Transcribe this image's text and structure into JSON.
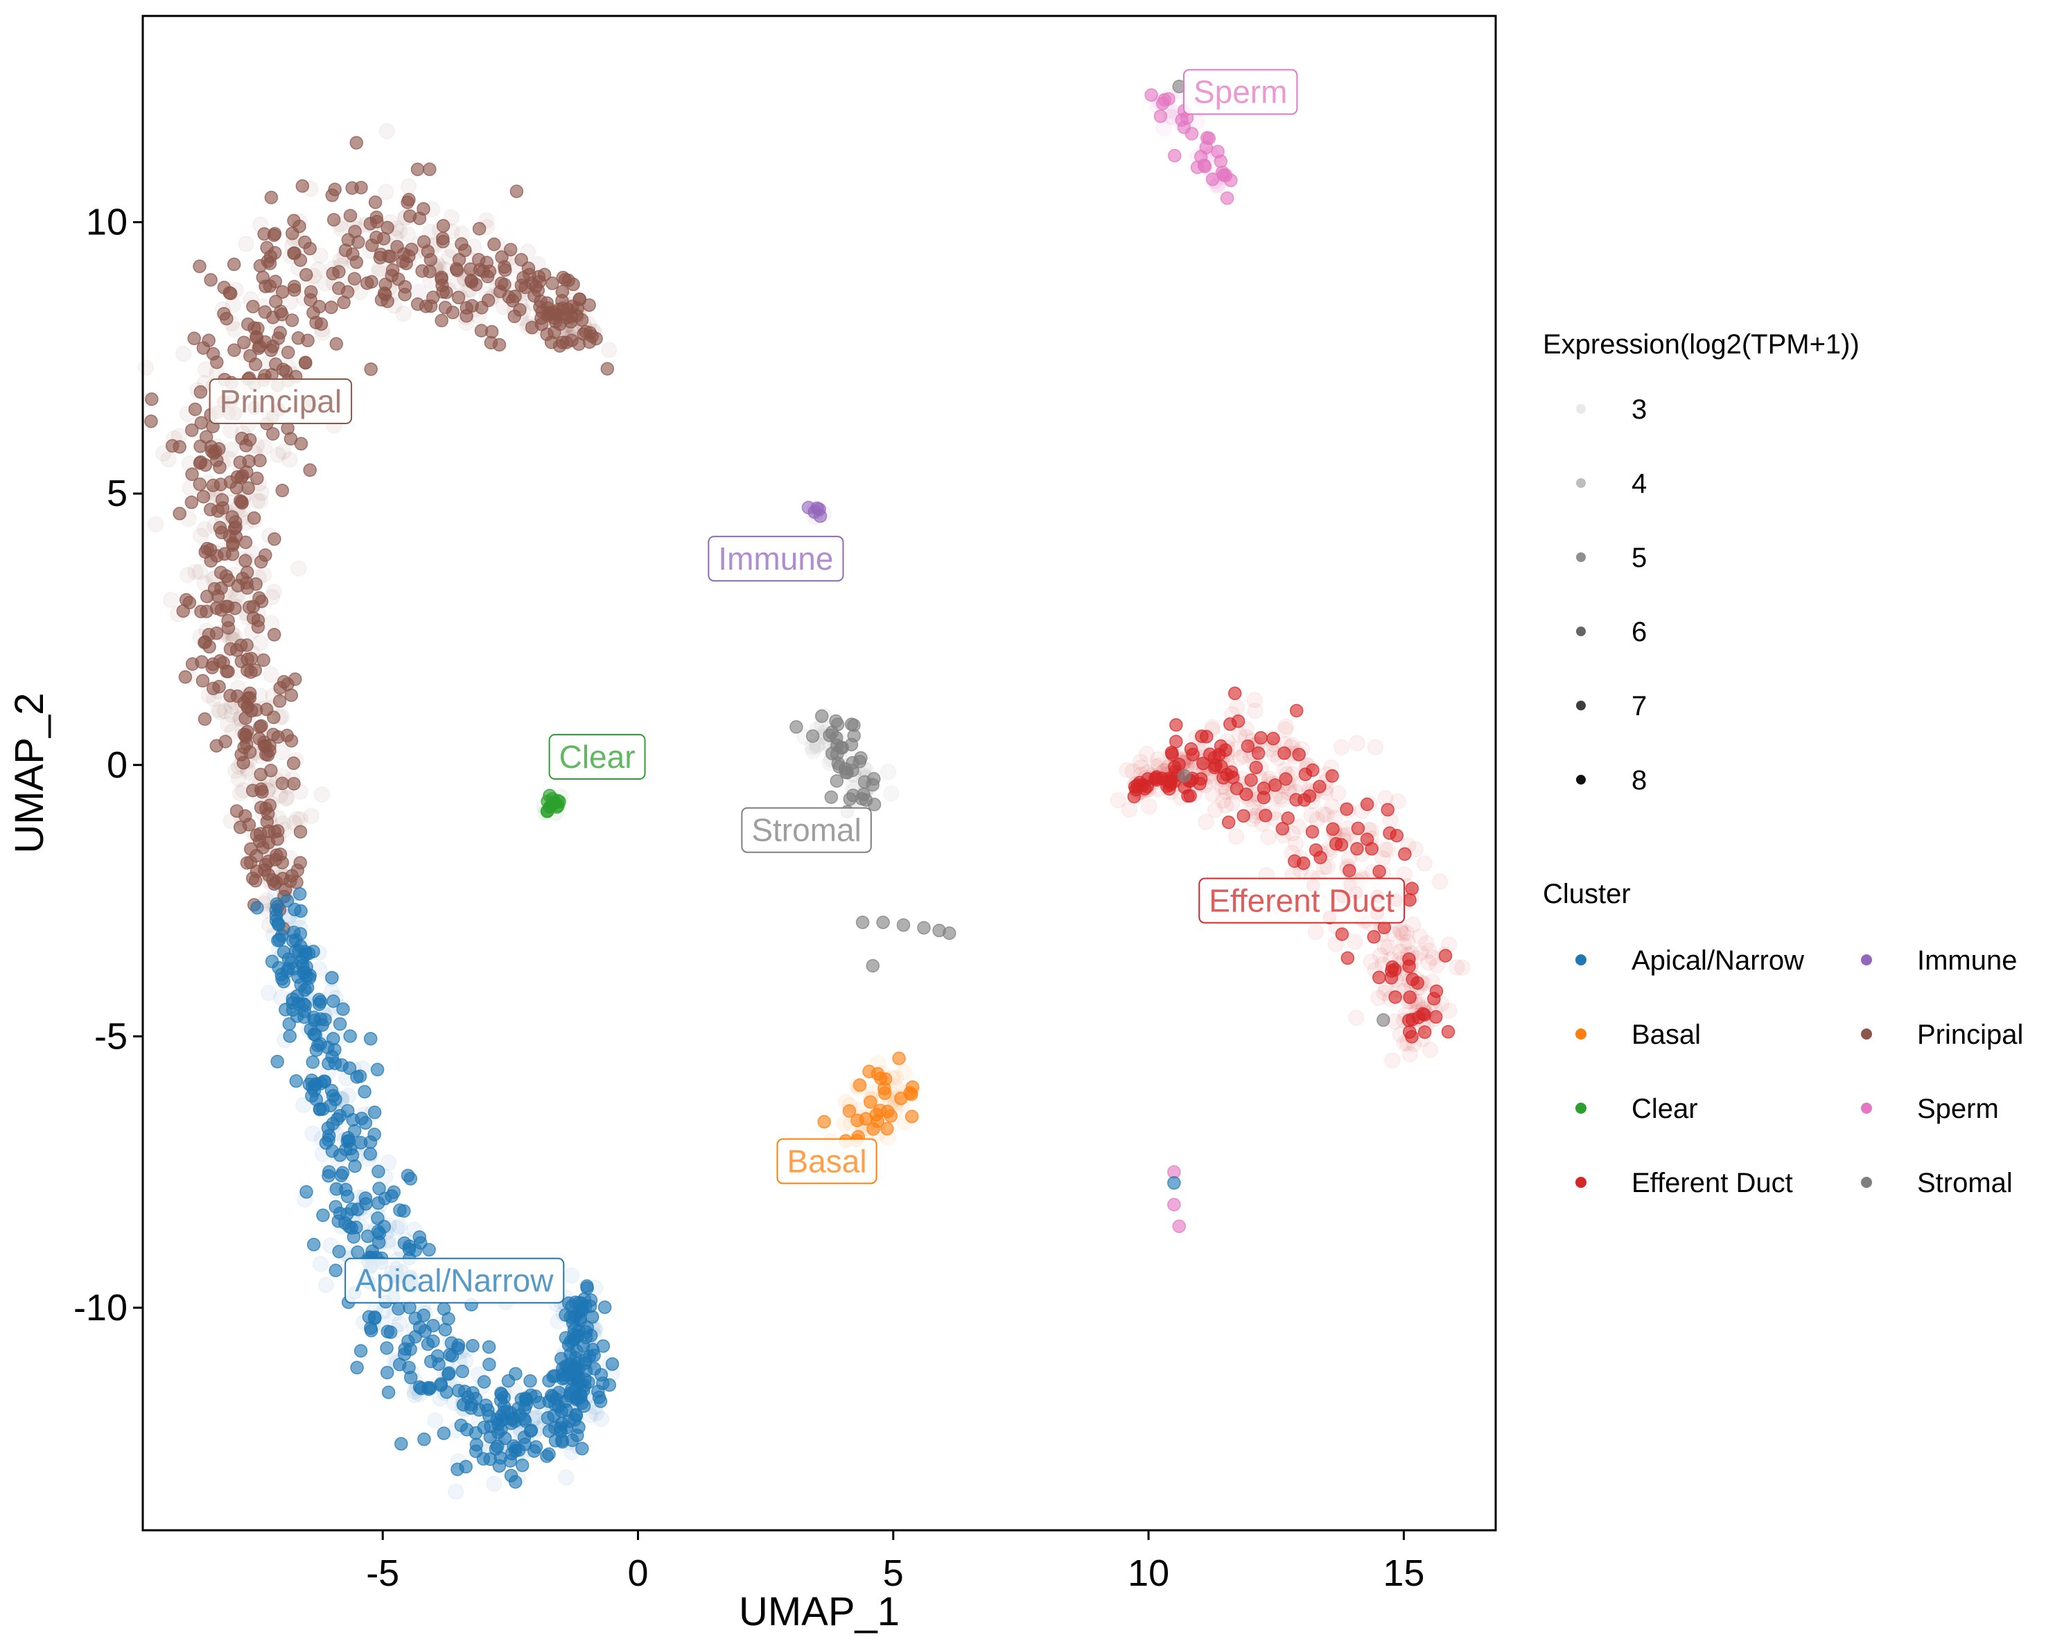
{
  "chart_data": {
    "type": "scatter",
    "xlabel": "UMAP_1",
    "ylabel": "UMAP_2",
    "xlim": [
      -9.7,
      16.8
    ],
    "ylim": [
      -14.1,
      13.8
    ],
    "x_ticks": [
      -5,
      0,
      5,
      10,
      15
    ],
    "y_ticks": [
      -10,
      -5,
      0,
      5,
      10
    ],
    "x_tick_labels": [
      "-5",
      "0",
      "5",
      "10",
      "15"
    ],
    "y_tick_labels": [
      "-10",
      "-5",
      "0",
      "5",
      "10"
    ],
    "grid": false,
    "legend_placement": "right",
    "size_legend": {
      "title": "Expression(log2(TPM+1))",
      "levels": [
        {
          "label": "3",
          "value": 3,
          "color": "#e9e9e9"
        },
        {
          "label": "4",
          "value": 4,
          "color": "#bdbdbd"
        },
        {
          "label": "5",
          "value": 5,
          "color": "#8f8f8f"
        },
        {
          "label": "6",
          "value": 6,
          "color": "#666666"
        },
        {
          "label": "7",
          "value": 7,
          "color": "#3d3d3d"
        },
        {
          "label": "8",
          "value": 8,
          "color": "#111111"
        }
      ]
    },
    "cluster_legend": {
      "title": "Cluster",
      "entries": [
        {
          "label": "Apical/Narrow",
          "color": "#1f77b4"
        },
        {
          "label": "Basal",
          "color": "#ff7f0e"
        },
        {
          "label": "Clear",
          "color": "#2ca02c"
        },
        {
          "label": "Efferent Duct",
          "color": "#d62728"
        },
        {
          "label": "Immune",
          "color": "#9467bd"
        },
        {
          "label": "Principal",
          "color": "#8c564b"
        },
        {
          "label": "Sperm",
          "color": "#e377c2"
        },
        {
          "label": "Stromal",
          "color": "#7f7f7f"
        }
      ]
    },
    "cluster_labels": [
      {
        "text": "Principal",
        "x": -7.0,
        "y": 6.7,
        "color": "#8c564b"
      },
      {
        "text": "Immune",
        "x": 2.7,
        "y": 3.8,
        "color": "#9467bd"
      },
      {
        "text": "Clear",
        "x": -0.8,
        "y": 0.15,
        "color": "#2ca02c"
      },
      {
        "text": "Stromal",
        "x": 3.3,
        "y": -1.2,
        "color": "#7f7f7f"
      },
      {
        "text": "Efferent Duct",
        "x": 13.0,
        "y": -2.5,
        "color": "#d62728"
      },
      {
        "text": "Basal",
        "x": 3.7,
        "y": -7.3,
        "color": "#ff7f0e"
      },
      {
        "text": "Apical/Narrow",
        "x": -3.6,
        "y": -9.5,
        "color": "#1f77b4"
      },
      {
        "text": "Sperm",
        "x": 11.8,
        "y": 12.4,
        "color": "#e377c2"
      }
    ],
    "clusters": [
      {
        "name": "Principal",
        "color": "#8c564b",
        "n": 950,
        "strong": 0.55,
        "path": [
          [
            -7.0,
            -2.5
          ],
          [
            -7.2,
            -1.5
          ],
          [
            -7.3,
            -0.5
          ],
          [
            -7.5,
            0.5
          ],
          [
            -7.7,
            1.5
          ],
          [
            -8.0,
            2.5
          ],
          [
            -8.1,
            3.5
          ],
          [
            -8.1,
            4.5
          ],
          [
            -8.0,
            5.5
          ],
          [
            -7.8,
            6.5
          ],
          [
            -7.5,
            7.5
          ],
          [
            -7.0,
            8.5
          ],
          [
            -6.3,
            9.2
          ],
          [
            -5.4,
            9.6
          ],
          [
            -4.6,
            9.6
          ],
          [
            -3.8,
            9.3
          ],
          [
            -3.0,
            8.9
          ],
          [
            -2.2,
            8.7
          ],
          [
            -1.5,
            8.4
          ],
          [
            -1.2,
            8.0
          ]
        ],
        "spread": [
          0.3,
          0.3,
          0.35,
          0.4,
          0.45,
          0.5,
          0.5,
          0.55,
          0.6,
          0.6,
          0.7,
          0.8,
          0.8,
          0.75,
          0.7,
          0.6,
          0.5,
          0.4,
          0.3,
          0.25
        ],
        "extra": [
          [
            -1.1,
            8.2
          ],
          [
            -0.6,
            7.3
          ],
          [
            -0.9,
            7.9
          ],
          [
            -1.4,
            8.3
          ]
        ]
      },
      {
        "name": "Apical/Narrow",
        "color": "#1f77b4",
        "n": 780,
        "strong": 0.6,
        "path": [
          [
            -6.9,
            -2.6
          ],
          [
            -6.7,
            -3.5
          ],
          [
            -6.4,
            -4.5
          ],
          [
            -6.1,
            -5.5
          ],
          [
            -5.8,
            -6.5
          ],
          [
            -5.6,
            -7.5
          ],
          [
            -5.3,
            -8.5
          ],
          [
            -4.9,
            -9.5
          ],
          [
            -4.4,
            -10.5
          ],
          [
            -3.8,
            -11.3
          ],
          [
            -3.2,
            -11.9
          ],
          [
            -2.5,
            -12.3
          ],
          [
            -1.8,
            -12.1
          ],
          [
            -1.3,
            -11.7
          ],
          [
            -1.1,
            -11.1
          ],
          [
            -1.2,
            -10.5
          ],
          [
            -1.2,
            -9.8
          ]
        ],
        "spread": [
          0.2,
          0.25,
          0.3,
          0.35,
          0.35,
          0.4,
          0.45,
          0.5,
          0.6,
          0.6,
          0.5,
          0.4,
          0.4,
          0.3,
          0.3,
          0.25,
          0.2
        ],
        "extra": [
          [
            -6.0,
            -6.0
          ],
          [
            -1.0,
            -9.6
          ]
        ]
      },
      {
        "name": "Efferent Duct",
        "color": "#d62728",
        "n": 520,
        "strong": 0.28,
        "path": [
          [
            9.6,
            -0.5
          ],
          [
            10.3,
            -0.2
          ],
          [
            11.0,
            0.0
          ],
          [
            11.7,
            0.1
          ],
          [
            12.4,
            -0.2
          ],
          [
            13.0,
            -0.7
          ],
          [
            13.6,
            -1.3
          ],
          [
            14.1,
            -2.0
          ],
          [
            14.5,
            -2.8
          ],
          [
            14.9,
            -3.6
          ],
          [
            15.2,
            -4.3
          ],
          [
            15.3,
            -5.0
          ]
        ],
        "spread": [
          0.15,
          0.2,
          0.3,
          0.45,
          0.55,
          0.6,
          0.6,
          0.6,
          0.55,
          0.45,
          0.35,
          0.2
        ],
        "extra": [
          [
            12.9,
            1.0
          ],
          [
            12.2,
            0.5
          ],
          [
            10.8,
            -0.3
          ]
        ]
      },
      {
        "name": "Sperm",
        "color": "#e377c2",
        "n": 55,
        "strong": 0.6,
        "path": [
          [
            10.1,
            12.3
          ],
          [
            10.5,
            12.0
          ],
          [
            11.0,
            11.8
          ],
          [
            11.2,
            11.4
          ],
          [
            11.4,
            11.0
          ],
          [
            11.4,
            10.6
          ],
          [
            11.5,
            10.2
          ]
        ],
        "spread": [
          0.2,
          0.25,
          0.3,
          0.25,
          0.15,
          0.12,
          0.1
        ],
        "extra": [
          [
            10.5,
            -8.1
          ],
          [
            10.6,
            -8.5
          ],
          [
            10.5,
            -7.5
          ]
        ]
      },
      {
        "name": "Basal",
        "color": "#ff7f0e",
        "n": 70,
        "strong": 0.45,
        "path": [
          [
            4.1,
            -6.7
          ],
          [
            4.5,
            -6.5
          ],
          [
            4.9,
            -6.2
          ],
          [
            5.1,
            -5.8
          ]
        ],
        "spread": [
          0.25,
          0.3,
          0.3,
          0.2
        ],
        "extra": []
      },
      {
        "name": "Clear",
        "color": "#2ca02c",
        "n": 18,
        "strong": 0.7,
        "path": [
          [
            -1.8,
            -0.8
          ],
          [
            -1.6,
            -0.6
          ]
        ],
        "spread": [
          0.08,
          0.08
        ],
        "extra": []
      },
      {
        "name": "Immune",
        "color": "#9467bd",
        "n": 10,
        "strong": 0.7,
        "path": [
          [
            3.5,
            4.7
          ],
          [
            3.6,
            4.6
          ]
        ],
        "spread": [
          0.06,
          0.06
        ],
        "extra": []
      },
      {
        "name": "Stromal",
        "color": "#7f7f7f",
        "n": 70,
        "strong": 0.5,
        "path": [
          [
            3.6,
            0.8
          ],
          [
            3.9,
            0.3
          ],
          [
            4.3,
            -0.2
          ],
          [
            4.5,
            -0.6
          ]
        ],
        "spread": [
          0.25,
          0.25,
          0.25,
          0.2
        ],
        "extra": [
          [
            4.4,
            -2.9
          ],
          [
            4.8,
            -2.9
          ],
          [
            5.2,
            -2.95
          ],
          [
            5.6,
            -3.0
          ],
          [
            5.9,
            -3.05
          ],
          [
            6.1,
            -3.1
          ],
          [
            4.6,
            -3.7
          ],
          [
            3.1,
            0.7
          ]
        ]
      }
    ]
  }
}
